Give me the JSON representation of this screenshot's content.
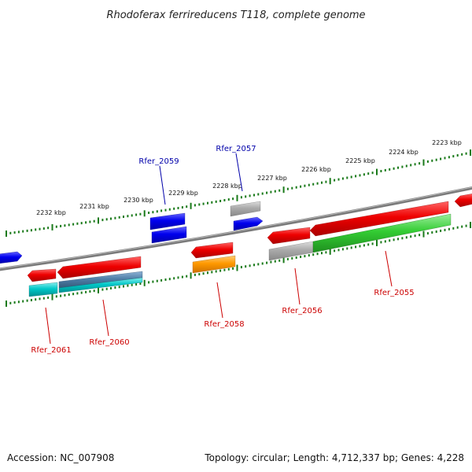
{
  "title": "Rhodoferax ferrireducens T118, complete genome",
  "footer": {
    "accession": "Accession: NC_007908",
    "summary": "Topology: circular; Length: 4,712,337 bp; Genes: 4,228"
  },
  "ruler_labels": [
    "2223 kbp",
    "2224 kbp",
    "2225 kbp",
    "2226 kbp",
    "2227 kbp",
    "2228 kbp",
    "2229 kbp",
    "2230 kbp",
    "2231 kbp",
    "2232 kbp"
  ],
  "gene_labels": [
    {
      "name": "Rfer_2059",
      "color": "#0000aa"
    },
    {
      "name": "Rfer_2057",
      "color": "#0000aa"
    },
    {
      "name": "Rfer_2061",
      "color": "#cc0000"
    },
    {
      "name": "Rfer_2060",
      "color": "#cc0000"
    },
    {
      "name": "Rfer_2058",
      "color": "#cc0000"
    },
    {
      "name": "Rfer_2056",
      "color": "#cc0000"
    },
    {
      "name": "Rfer_2055",
      "color": "#cc0000"
    }
  ],
  "colors": {
    "backbone": "#808080",
    "ruler": "#1a7a1a",
    "gene_red": "#ee0000",
    "gene_blue": "#0000ee",
    "gene_cyan": "#00c8c8",
    "gene_green": "#33cc33",
    "gene_orange": "#ff9900",
    "gene_gray": "#aaaaaa",
    "gene_steel": "#4f7fa8"
  }
}
